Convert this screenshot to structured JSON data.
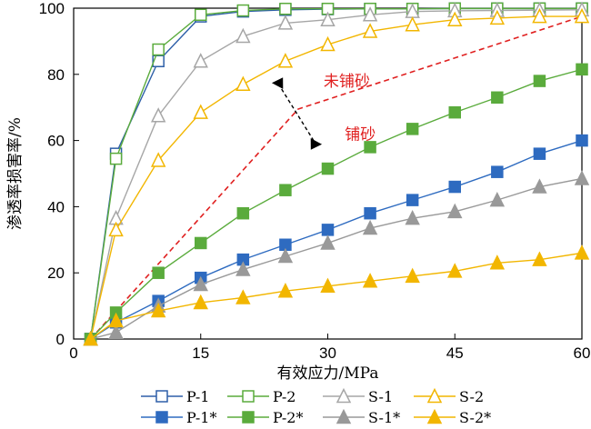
{
  "chart_data": {
    "type": "line",
    "title": "",
    "xlabel": "有效应力/MPa",
    "ylabel": "渗透率损害率/%",
    "xlim": [
      0,
      60
    ],
    "ylim": [
      0,
      100
    ],
    "xticks": [
      0,
      15,
      30,
      45,
      60
    ],
    "yticks": [
      0,
      20,
      40,
      60,
      80,
      100
    ],
    "grid": false,
    "legend": "bottom",
    "series": [
      {
        "name": "P-1",
        "color": "#2e5fa8",
        "marker": "square",
        "filled": false,
        "x": [
          2,
          5,
          10,
          15,
          20,
          25,
          30,
          35,
          40,
          45,
          50,
          55,
          60
        ],
        "y": [
          0,
          56,
          84,
          97.5,
          99,
          99.5,
          99.7,
          99.8,
          99.8,
          99.9,
          99.9,
          99.9,
          99.9
        ]
      },
      {
        "name": "P-2",
        "color": "#5aab3c",
        "marker": "square",
        "filled": false,
        "x": [
          2,
          5,
          10,
          15,
          20,
          25,
          30,
          35,
          40,
          45,
          50,
          55,
          60
        ],
        "y": [
          0,
          54.5,
          87.5,
          98,
          99.3,
          99.8,
          99.8,
          99.8,
          99.8,
          99.9,
          99.9,
          99.9,
          99.9
        ]
      },
      {
        "name": "S-1",
        "color": "#a6a6a6",
        "marker": "triangle",
        "filled": false,
        "x": [
          2,
          5,
          10,
          15,
          20,
          25,
          30,
          35,
          40,
          45,
          50,
          55,
          60
        ],
        "y": [
          0,
          36.5,
          67.5,
          84,
          91.5,
          95.5,
          96.5,
          98,
          99,
          99.2,
          99.3,
          99.4,
          99.5
        ]
      },
      {
        "name": "S-2",
        "color": "#f2b600",
        "marker": "triangle",
        "filled": false,
        "x": [
          2,
          5,
          10,
          15,
          20,
          25,
          30,
          35,
          40,
          45,
          50,
          55,
          60
        ],
        "y": [
          0,
          33,
          54,
          68.5,
          77,
          84,
          89,
          93,
          95,
          96.5,
          97,
          97.5,
          97.5
        ]
      },
      {
        "name": "P-1*",
        "color": "#2e6bc0",
        "marker": "square",
        "filled": true,
        "x": [
          2,
          5,
          10,
          15,
          20,
          25,
          30,
          35,
          40,
          45,
          50,
          55,
          60
        ],
        "y": [
          0,
          5,
          11.5,
          18.5,
          24,
          28.5,
          33,
          38,
          42,
          46,
          50.5,
          56,
          60
        ]
      },
      {
        "name": "P-2*",
        "color": "#5aab3c",
        "marker": "square",
        "filled": true,
        "x": [
          2,
          5,
          10,
          15,
          20,
          25,
          30,
          35,
          40,
          45,
          50,
          55,
          60
        ],
        "y": [
          0,
          8,
          20,
          29,
          38,
          45,
          51.5,
          58,
          63.5,
          68.5,
          73,
          78,
          81.5
        ]
      },
      {
        "name": "S-1*",
        "color": "#999999",
        "marker": "triangle",
        "filled": true,
        "x": [
          2,
          5,
          10,
          15,
          20,
          25,
          30,
          35,
          40,
          45,
          50,
          55,
          60
        ],
        "y": [
          0,
          2,
          10,
          16.5,
          21,
          25,
          29,
          33.5,
          36.5,
          38.5,
          42,
          46,
          48.5
        ]
      },
      {
        "name": "S-2*",
        "color": "#f2b600",
        "marker": "triangle",
        "filled": true,
        "x": [
          2,
          5,
          10,
          15,
          20,
          25,
          30,
          35,
          40,
          45,
          50,
          55,
          60
        ],
        "y": [
          0,
          5.5,
          8.5,
          11,
          12.5,
          14.5,
          16,
          17.5,
          19,
          20.5,
          23,
          24,
          26
        ]
      }
    ],
    "reference_line": {
      "color": "#e02020",
      "x": [
        2,
        26.5,
        60
      ],
      "y": [
        0,
        69.5,
        97.5
      ]
    },
    "annotations": [
      {
        "text": "未铺砂",
        "color": "#e02020",
        "x": 29.5,
        "y": 78
      },
      {
        "text": "铺砂",
        "color": "#e02020",
        "x": 32,
        "y": 62
      }
    ]
  }
}
